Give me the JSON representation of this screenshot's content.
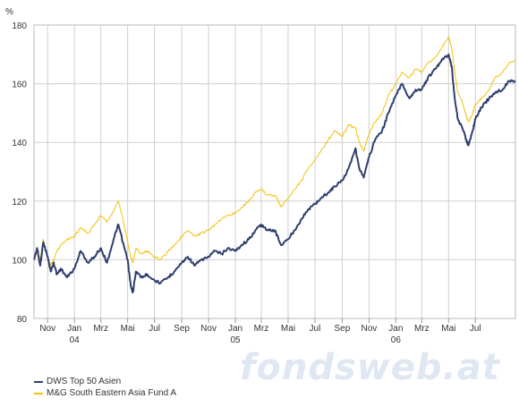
{
  "chart_data": {
    "type": "line",
    "ylabel": "%",
    "ylim": [
      80,
      180
    ],
    "yticks": [
      80,
      100,
      120,
      140,
      160,
      180
    ],
    "xlim": [
      "2003-10-01",
      "2006-09-30"
    ],
    "x_month_ticks": [
      {
        "date": "2003-11-01",
        "label": "Nov"
      },
      {
        "date": "2004-01-01",
        "label": "Jan",
        "year": "04"
      },
      {
        "date": "2004-03-01",
        "label": "Mrz"
      },
      {
        "date": "2004-05-01",
        "label": "Mai"
      },
      {
        "date": "2004-07-01",
        "label": "Jul"
      },
      {
        "date": "2004-09-01",
        "label": "Sep"
      },
      {
        "date": "2004-11-01",
        "label": "Nov"
      },
      {
        "date": "2005-01-01",
        "label": "Jan",
        "year": "05"
      },
      {
        "date": "2005-03-01",
        "label": "Mrz"
      },
      {
        "date": "2005-05-01",
        "label": "Mai"
      },
      {
        "date": "2005-07-01",
        "label": "Jul"
      },
      {
        "date": "2005-09-01",
        "label": "Sep"
      },
      {
        "date": "2005-11-01",
        "label": "Nov"
      },
      {
        "date": "2006-01-01",
        "label": "Jan",
        "year": "06"
      },
      {
        "date": "2006-03-01",
        "label": "Mrz"
      },
      {
        "date": "2006-05-01",
        "label": "Mai"
      },
      {
        "date": "2006-07-01",
        "label": "Jul"
      }
    ],
    "grid": true,
    "legend_position": "bottom-left",
    "series": [
      {
        "name": "DWS Top 50 Asien",
        "color": "#2f3f6e",
        "points": [
          [
            "2003-10-01",
            100
          ],
          [
            "2003-10-08",
            104
          ],
          [
            "2003-10-15",
            98
          ],
          [
            "2003-10-22",
            106
          ],
          [
            "2003-11-01",
            101
          ],
          [
            "2003-11-08",
            96
          ],
          [
            "2003-11-15",
            99
          ],
          [
            "2003-11-22",
            95
          ],
          [
            "2003-12-01",
            97
          ],
          [
            "2003-12-15",
            94
          ],
          [
            "2004-01-01",
            97
          ],
          [
            "2004-01-15",
            103
          ],
          [
            "2004-02-01",
            99
          ],
          [
            "2004-02-15",
            101
          ],
          [
            "2004-03-01",
            104
          ],
          [
            "2004-03-15",
            99
          ],
          [
            "2004-04-01",
            108
          ],
          [
            "2004-04-10",
            112
          ],
          [
            "2004-04-20",
            106
          ],
          [
            "2004-05-01",
            100
          ],
          [
            "2004-05-08",
            91
          ],
          [
            "2004-05-13",
            89
          ],
          [
            "2004-05-20",
            96
          ],
          [
            "2004-06-01",
            94
          ],
          [
            "2004-06-15",
            95
          ],
          [
            "2004-07-01",
            93
          ],
          [
            "2004-07-15",
            92
          ],
          [
            "2004-08-01",
            94
          ],
          [
            "2004-08-15",
            96
          ],
          [
            "2004-09-01",
            99
          ],
          [
            "2004-09-15",
            101
          ],
          [
            "2004-10-01",
            98
          ],
          [
            "2004-10-15",
            100
          ],
          [
            "2004-11-01",
            101
          ],
          [
            "2004-11-15",
            103
          ],
          [
            "2004-12-01",
            102
          ],
          [
            "2004-12-15",
            104
          ],
          [
            "2005-01-01",
            103
          ],
          [
            "2005-01-15",
            105
          ],
          [
            "2005-02-01",
            107
          ],
          [
            "2005-02-15",
            110
          ],
          [
            "2005-03-01",
            112
          ],
          [
            "2005-03-15",
            110
          ],
          [
            "2005-04-01",
            110
          ],
          [
            "2005-04-15",
            105
          ],
          [
            "2005-05-01",
            107
          ],
          [
            "2005-05-15",
            110
          ],
          [
            "2005-06-01",
            114
          ],
          [
            "2005-06-15",
            117
          ],
          [
            "2005-07-01",
            119
          ],
          [
            "2005-07-15",
            121
          ],
          [
            "2005-08-01",
            123
          ],
          [
            "2005-08-15",
            125
          ],
          [
            "2005-09-01",
            127
          ],
          [
            "2005-09-15",
            131
          ],
          [
            "2005-10-01",
            138
          ],
          [
            "2005-10-10",
            131
          ],
          [
            "2005-10-20",
            128
          ],
          [
            "2005-11-01",
            135
          ],
          [
            "2005-11-15",
            141
          ],
          [
            "2005-12-01",
            144
          ],
          [
            "2005-12-15",
            150
          ],
          [
            "2006-01-01",
            156
          ],
          [
            "2006-01-15",
            160
          ],
          [
            "2006-02-01",
            155
          ],
          [
            "2006-02-15",
            158
          ],
          [
            "2006-03-01",
            158
          ],
          [
            "2006-03-15",
            162
          ],
          [
            "2006-04-01",
            165
          ],
          [
            "2006-04-15",
            168
          ],
          [
            "2006-05-01",
            170
          ],
          [
            "2006-05-08",
            166
          ],
          [
            "2006-05-15",
            155
          ],
          [
            "2006-05-22",
            148
          ],
          [
            "2006-06-01",
            145
          ],
          [
            "2006-06-10",
            141
          ],
          [
            "2006-06-15",
            139
          ],
          [
            "2006-06-25",
            144
          ],
          [
            "2006-07-01",
            148
          ],
          [
            "2006-07-15",
            152
          ],
          [
            "2006-08-01",
            155
          ],
          [
            "2006-08-15",
            157
          ],
          [
            "2006-09-01",
            158
          ],
          [
            "2006-09-15",
            161
          ],
          [
            "2006-09-30",
            161
          ]
        ]
      },
      {
        "name": "M&G South Eastern Asia Fund A",
        "color": "#f2c20a",
        "points": [
          [
            "2003-10-01",
            100
          ],
          [
            "2003-10-08",
            103
          ],
          [
            "2003-10-15",
            100
          ],
          [
            "2003-10-22",
            107
          ],
          [
            "2003-11-01",
            101
          ],
          [
            "2003-11-08",
            98
          ],
          [
            "2003-11-15",
            100
          ],
          [
            "2003-11-22",
            103
          ],
          [
            "2003-12-01",
            105
          ],
          [
            "2003-12-15",
            107
          ],
          [
            "2004-01-01",
            108
          ],
          [
            "2004-01-15",
            111
          ],
          [
            "2004-02-01",
            109
          ],
          [
            "2004-02-15",
            112
          ],
          [
            "2004-03-01",
            115
          ],
          [
            "2004-03-15",
            113
          ],
          [
            "2004-04-01",
            117
          ],
          [
            "2004-04-10",
            120
          ],
          [
            "2004-04-20",
            114
          ],
          [
            "2004-05-01",
            106
          ],
          [
            "2004-05-08",
            101
          ],
          [
            "2004-05-13",
            99
          ],
          [
            "2004-05-20",
            104
          ],
          [
            "2004-06-01",
            102
          ],
          [
            "2004-06-15",
            103
          ],
          [
            "2004-07-01",
            101
          ],
          [
            "2004-07-15",
            100
          ],
          [
            "2004-08-01",
            103
          ],
          [
            "2004-08-15",
            105
          ],
          [
            "2004-09-01",
            108
          ],
          [
            "2004-09-15",
            110
          ],
          [
            "2004-10-01",
            108
          ],
          [
            "2004-10-15",
            109
          ],
          [
            "2004-11-01",
            110
          ],
          [
            "2004-11-15",
            112
          ],
          [
            "2004-12-01",
            114
          ],
          [
            "2004-12-15",
            115
          ],
          [
            "2005-01-01",
            116
          ],
          [
            "2005-01-15",
            118
          ],
          [
            "2005-02-01",
            120
          ],
          [
            "2005-02-15",
            123
          ],
          [
            "2005-03-01",
            124
          ],
          [
            "2005-03-15",
            122
          ],
          [
            "2005-04-01",
            122
          ],
          [
            "2005-04-15",
            118
          ],
          [
            "2005-05-01",
            121
          ],
          [
            "2005-05-15",
            124
          ],
          [
            "2005-06-01",
            127
          ],
          [
            "2005-06-15",
            131
          ],
          [
            "2005-07-01",
            134
          ],
          [
            "2005-07-15",
            137
          ],
          [
            "2005-08-01",
            141
          ],
          [
            "2005-08-15",
            144
          ],
          [
            "2005-09-01",
            142
          ],
          [
            "2005-09-15",
            146
          ],
          [
            "2005-10-01",
            145
          ],
          [
            "2005-10-10",
            140
          ],
          [
            "2005-10-20",
            137
          ],
          [
            "2005-11-01",
            143
          ],
          [
            "2005-11-15",
            147
          ],
          [
            "2005-12-01",
            150
          ],
          [
            "2005-12-15",
            156
          ],
          [
            "2006-01-01",
            160
          ],
          [
            "2006-01-15",
            164
          ],
          [
            "2006-02-01",
            162
          ],
          [
            "2006-02-15",
            165
          ],
          [
            "2006-03-01",
            164
          ],
          [
            "2006-03-15",
            167
          ],
          [
            "2006-04-01",
            169
          ],
          [
            "2006-04-15",
            172
          ],
          [
            "2006-05-01",
            176
          ],
          [
            "2006-05-08",
            172
          ],
          [
            "2006-05-15",
            164
          ],
          [
            "2006-05-22",
            157
          ],
          [
            "2006-06-01",
            154
          ],
          [
            "2006-06-10",
            149
          ],
          [
            "2006-06-15",
            147
          ],
          [
            "2006-06-25",
            150
          ],
          [
            "2006-07-01",
            153
          ],
          [
            "2006-07-15",
            155
          ],
          [
            "2006-08-01",
            158
          ],
          [
            "2006-08-15",
            162
          ],
          [
            "2006-09-01",
            164
          ],
          [
            "2006-09-15",
            167
          ],
          [
            "2006-09-30",
            168
          ]
        ]
      }
    ]
  },
  "watermark": "fondsweb.at"
}
